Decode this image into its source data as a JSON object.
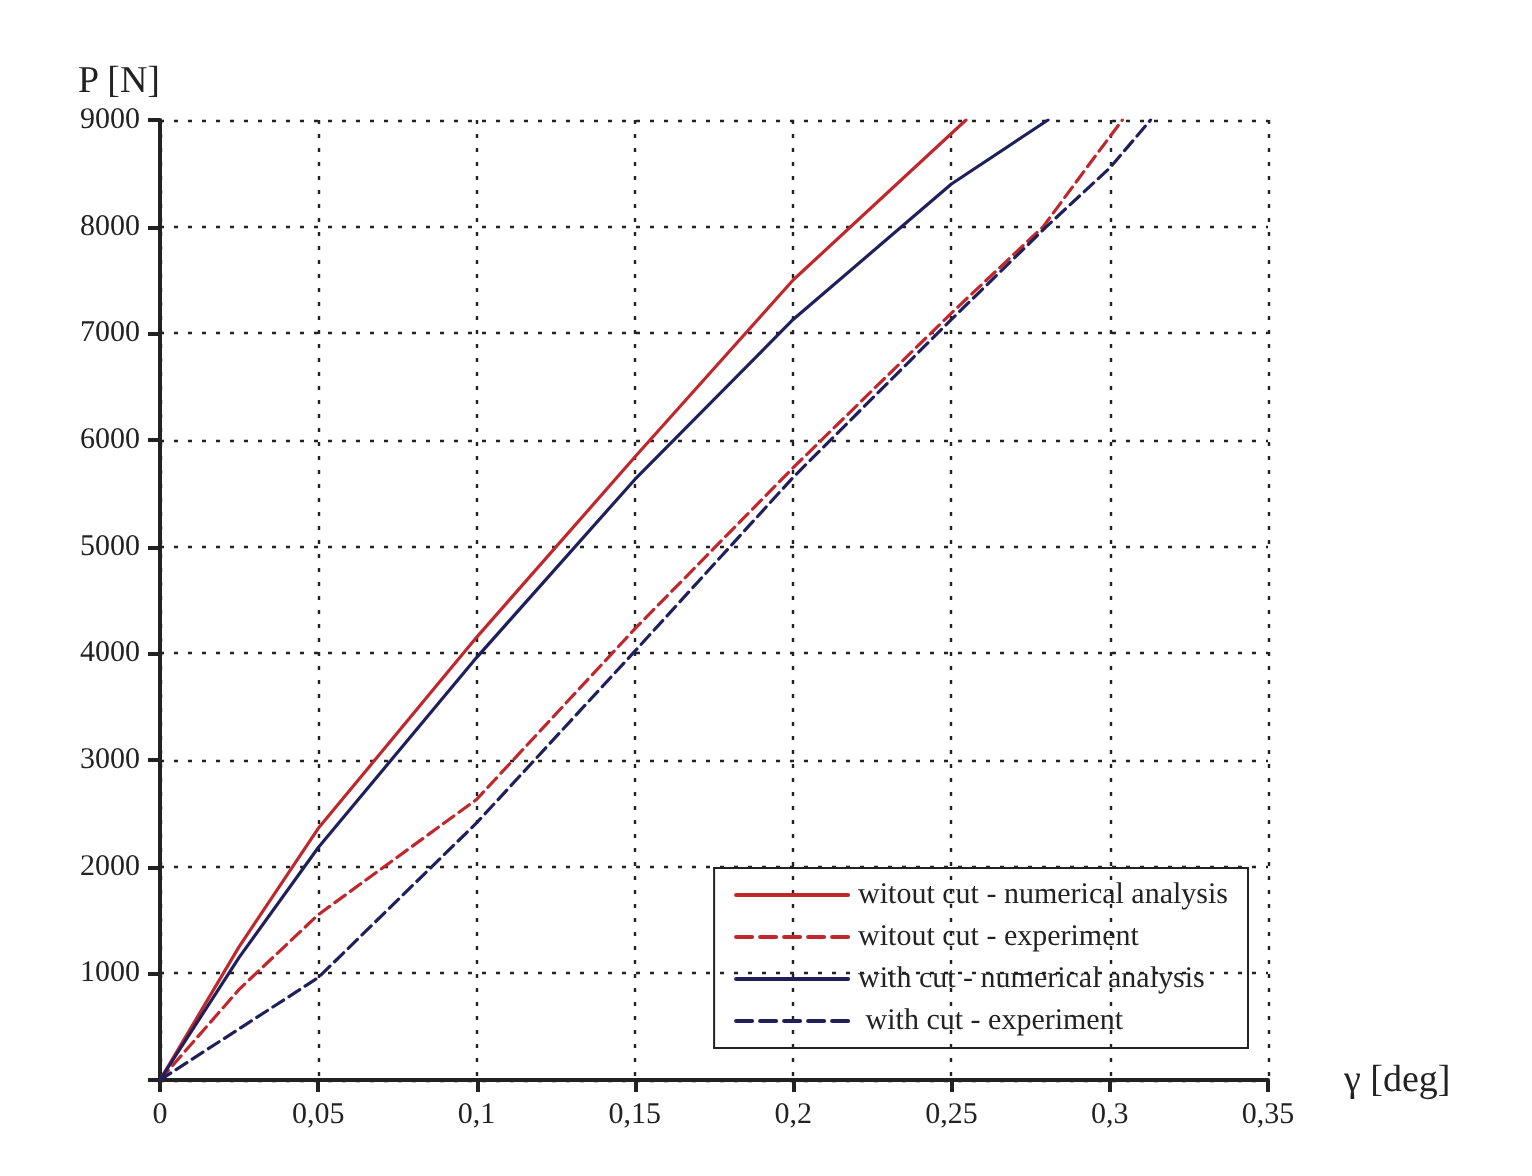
{
  "chart_data": {
    "type": "line",
    "xlabel": "γ [deg]",
    "ylabel": "P [N]",
    "xlim": [
      0,
      0.35
    ],
    "xticks": [
      {
        "value": 0,
        "label": "0"
      },
      {
        "value": 0.05,
        "label": "0,05"
      },
      {
        "value": 0.1,
        "label": "0,1"
      },
      {
        "value": 0.15,
        "label": "0,15"
      },
      {
        "value": 0.2,
        "label": "0,2"
      },
      {
        "value": 0.25,
        "label": "0,25"
      },
      {
        "value": 0.3,
        "label": "0,3"
      },
      {
        "value": 0.35,
        "label": "0,35"
      }
    ],
    "ylim": [
      0,
      9000
    ],
    "yticks": [
      {
        "value": 0,
        "label": null
      },
      1000,
      2000,
      3000,
      4000,
      5000,
      6000,
      7000,
      8000,
      9000
    ],
    "grid": true,
    "legend": "bottom right",
    "marker": "none",
    "series": [
      {
        "name": "witout cut - numerical analysis",
        "color": "#c0272d",
        "line_style": "solid",
        "x": [
          0,
          0.025,
          0.05,
          0.1,
          0.15,
          0.2,
          0.2546
        ],
        "values": [
          0,
          1250,
          2360,
          4150,
          5840,
          7500,
          9000
        ]
      },
      {
        "name": "witout cut - experiment",
        "color": "#c0272d",
        "line_style": "dashed",
        "x": [
          0,
          0.025,
          0.05,
          0.1,
          0.15,
          0.2,
          0.25,
          0.279,
          0.2914,
          0.304
        ],
        "values": [
          0,
          850,
          1550,
          2630,
          4230,
          5740,
          7190,
          8000,
          8500,
          9000
        ]
      },
      {
        "name": "with cut - numerical analysis",
        "color": "#1f1f5c",
        "line_style": "solid",
        "x": [
          0,
          0.025,
          0.05,
          0.1,
          0.15,
          0.2,
          0.25,
          0.2805
        ],
        "values": [
          0,
          1150,
          2180,
          3960,
          5630,
          7130,
          8400,
          9000
        ]
      },
      {
        "name": " with cut - experiment",
        "color": "#1f1f5c",
        "line_style": "dashed",
        "x": [
          0,
          0.025,
          0.05,
          0.1,
          0.15,
          0.2,
          0.25,
          0.28,
          0.3,
          0.3129
        ],
        "values": [
          0,
          480,
          960,
          2410,
          4020,
          5650,
          7130,
          8000,
          8550,
          9000
        ]
      }
    ]
  }
}
